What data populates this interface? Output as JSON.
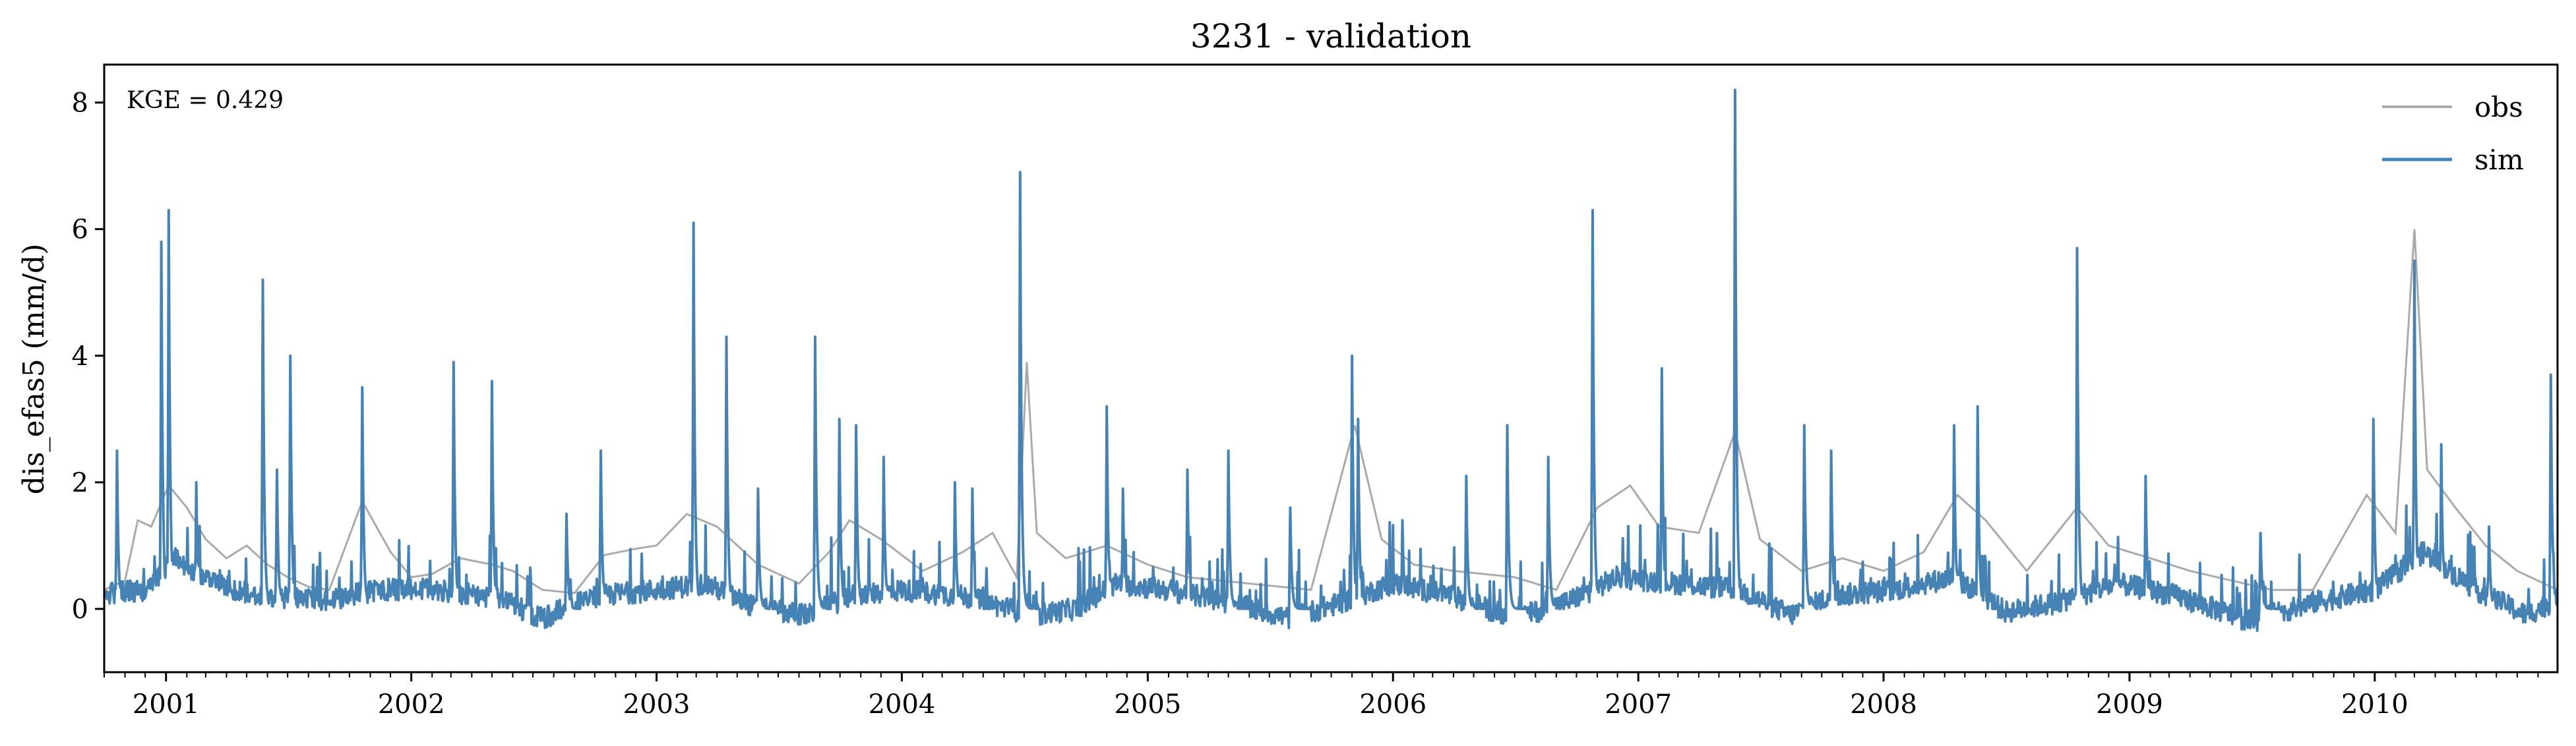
{
  "chart_data": {
    "type": "line",
    "title": "3231 - validation",
    "xlabel": "",
    "ylabel": "dis_efas5 (mm/d)",
    "annotation": "KGE = 0.429",
    "xlim": [
      "2000-10-01",
      "2010-09-30"
    ],
    "ylim": [
      -1,
      8.6
    ],
    "yticks": [
      0,
      2,
      4,
      6,
      8
    ],
    "xticks": [
      "2001",
      "2002",
      "2003",
      "2004",
      "2005",
      "2006",
      "2007",
      "2008",
      "2009",
      "2010"
    ],
    "grid": false,
    "legend_position": "top-right",
    "series": [
      {
        "name": "obs",
        "color": "#aaaaaa",
        "points": [
          [
            "2000-10-01",
            0.3
          ],
          [
            "2000-11-01",
            0.45
          ],
          [
            "2000-11-20",
            1.4
          ],
          [
            "2000-12-10",
            1.3
          ],
          [
            "2001-01-05",
            1.95
          ],
          [
            "2001-02-01",
            1.6
          ],
          [
            "2001-03-01",
            1.1
          ],
          [
            "2001-04-01",
            0.8
          ],
          [
            "2001-05-01",
            1.0
          ],
          [
            "2001-06-01",
            0.7
          ],
          [
            "2001-07-01",
            0.5
          ],
          [
            "2001-08-01",
            0.35
          ],
          [
            "2001-09-01",
            0.3
          ],
          [
            "2001-10-20",
            1.7
          ],
          [
            "2001-12-01",
            0.9
          ],
          [
            "2002-01-01",
            0.5
          ],
          [
            "2002-02-01",
            0.55
          ],
          [
            "2002-03-15",
            0.8
          ],
          [
            "2002-05-01",
            0.7
          ],
          [
            "2002-06-01",
            0.6
          ],
          [
            "2002-07-15",
            0.3
          ],
          [
            "2002-09-01",
            0.25
          ],
          [
            "2002-10-15",
            0.85
          ],
          [
            "2002-12-01",
            0.95
          ],
          [
            "2003-01-01",
            1.0
          ],
          [
            "2003-02-15",
            1.5
          ],
          [
            "2003-04-01",
            1.3
          ],
          [
            "2003-06-01",
            0.7
          ],
          [
            "2003-08-01",
            0.4
          ],
          [
            "2003-09-15",
            0.9
          ],
          [
            "2003-10-15",
            1.4
          ],
          [
            "2003-12-01",
            1.1
          ],
          [
            "2004-02-01",
            0.6
          ],
          [
            "2004-04-01",
            0.9
          ],
          [
            "2004-05-15",
            1.2
          ],
          [
            "2004-06-20",
            0.5
          ],
          [
            "2004-07-05",
            3.9
          ],
          [
            "2004-07-20",
            1.2
          ],
          [
            "2004-09-01",
            0.8
          ],
          [
            "2004-11-01",
            1.0
          ],
          [
            "2005-01-01",
            0.7
          ],
          [
            "2005-03-01",
            0.5
          ],
          [
            "2005-06-01",
            0.4
          ],
          [
            "2005-09-01",
            0.3
          ],
          [
            "2005-11-05",
            2.9
          ],
          [
            "2005-12-15",
            1.1
          ],
          [
            "2006-02-01",
            0.7
          ],
          [
            "2006-04-01",
            0.6
          ],
          [
            "2006-07-01",
            0.5
          ],
          [
            "2006-09-01",
            0.3
          ],
          [
            "2006-11-01",
            1.6
          ],
          [
            "2006-12-20",
            1.95
          ],
          [
            "2007-02-01",
            1.3
          ],
          [
            "2007-04-01",
            1.2
          ],
          [
            "2007-05-25",
            2.8
          ],
          [
            "2007-07-01",
            1.1
          ],
          [
            "2007-09-01",
            0.6
          ],
          [
            "2007-11-01",
            0.8
          ],
          [
            "2008-01-01",
            0.6
          ],
          [
            "2008-03-01",
            0.9
          ],
          [
            "2008-04-20",
            1.8
          ],
          [
            "2008-06-01",
            1.4
          ],
          [
            "2008-08-01",
            0.6
          ],
          [
            "2008-10-15",
            1.6
          ],
          [
            "2008-12-01",
            1.0
          ],
          [
            "2009-02-01",
            0.8
          ],
          [
            "2009-04-01",
            0.6
          ],
          [
            "2009-06-01",
            0.45
          ],
          [
            "2009-08-01",
            0.3
          ],
          [
            "2009-10-01",
            0.3
          ],
          [
            "2009-12-20",
            1.8
          ],
          [
            "2010-02-01",
            1.2
          ],
          [
            "2010-03-01",
            6.0
          ],
          [
            "2010-03-20",
            2.2
          ],
          [
            "2010-05-01",
            1.6
          ],
          [
            "2010-06-15",
            1.0
          ],
          [
            "2010-08-01",
            0.6
          ],
          [
            "2010-09-30",
            0.3
          ]
        ]
      },
      {
        "name": "sim",
        "color": "#4682b4",
        "base_points": [
          [
            "2000-10-01",
            0.25
          ],
          [
            "2000-12-01",
            0.3
          ],
          [
            "2001-01-15",
            0.8
          ],
          [
            "2001-03-15",
            0.4
          ],
          [
            "2001-06-01",
            0.15
          ],
          [
            "2001-09-01",
            0.15
          ],
          [
            "2001-11-15",
            0.3
          ],
          [
            "2002-02-01",
            0.3
          ],
          [
            "2002-05-01",
            0.2
          ],
          [
            "2002-07-15",
            -0.15
          ],
          [
            "2002-10-01",
            0.2
          ],
          [
            "2003-01-01",
            0.3
          ],
          [
            "2003-03-15",
            0.4
          ],
          [
            "2003-06-01",
            0.0
          ],
          [
            "2003-08-15",
            -0.1
          ],
          [
            "2003-10-15",
            0.2
          ],
          [
            "2004-01-01",
            0.3
          ],
          [
            "2004-04-01",
            0.2
          ],
          [
            "2004-07-15",
            -0.1
          ],
          [
            "2004-09-15",
            0.0
          ],
          [
            "2004-11-15",
            0.4
          ],
          [
            "2005-02-01",
            0.3
          ],
          [
            "2005-05-01",
            0.1
          ],
          [
            "2005-08-01",
            -0.15
          ],
          [
            "2005-10-15",
            0.1
          ],
          [
            "2006-01-01",
            0.4
          ],
          [
            "2006-04-01",
            0.2
          ],
          [
            "2006-07-01",
            -0.15
          ],
          [
            "2006-09-15",
            0.1
          ],
          [
            "2006-12-01",
            0.5
          ],
          [
            "2007-03-01",
            0.4
          ],
          [
            "2007-06-01",
            0.3
          ],
          [
            "2007-08-15",
            -0.1
          ],
          [
            "2007-10-15",
            0.2
          ],
          [
            "2008-01-15",
            0.3
          ],
          [
            "2008-04-15",
            0.5
          ],
          [
            "2008-07-01",
            -0.05
          ],
          [
            "2008-09-15",
            0.1
          ],
          [
            "2008-12-15",
            0.4
          ],
          [
            "2009-03-15",
            0.2
          ],
          [
            "2009-07-01",
            -0.2
          ],
          [
            "2009-10-01",
            0.1
          ],
          [
            "2010-01-01",
            0.3
          ],
          [
            "2010-03-15",
            0.9
          ],
          [
            "2010-06-01",
            0.3
          ],
          [
            "2010-08-15",
            -0.1
          ],
          [
            "2010-09-30",
            0.15
          ]
        ],
        "peaks": [
          [
            "2000-10-20",
            2.5
          ],
          [
            "2000-12-25",
            5.8
          ],
          [
            "2001-01-05",
            6.3
          ],
          [
            "2001-02-15",
            2.0
          ],
          [
            "2001-05-25",
            5.2
          ],
          [
            "2001-06-15",
            2.2
          ],
          [
            "2001-07-05",
            4.0
          ],
          [
            "2001-10-20",
            3.5
          ],
          [
            "2002-03-05",
            3.9
          ],
          [
            "2002-05-01",
            3.6
          ],
          [
            "2002-08-20",
            1.5
          ],
          [
            "2002-10-10",
            2.5
          ],
          [
            "2003-02-25",
            6.1
          ],
          [
            "2003-04-15",
            4.3
          ],
          [
            "2003-06-01",
            1.9
          ],
          [
            "2003-08-25",
            4.3
          ],
          [
            "2003-09-30",
            3.0
          ],
          [
            "2003-10-25",
            2.9
          ],
          [
            "2003-12-05",
            2.4
          ],
          [
            "2004-03-20",
            2.0
          ],
          [
            "2004-04-15",
            1.9
          ],
          [
            "2004-06-25",
            6.9
          ],
          [
            "2004-11-01",
            3.2
          ],
          [
            "2004-11-25",
            1.9
          ],
          [
            "2005-03-01",
            2.2
          ],
          [
            "2005-05-01",
            2.5
          ],
          [
            "2005-08-01",
            1.6
          ],
          [
            "2005-11-01",
            4.0
          ],
          [
            "2005-11-10",
            3.0
          ],
          [
            "2006-01-15",
            1.4
          ],
          [
            "2006-04-20",
            2.1
          ],
          [
            "2006-06-20",
            2.9
          ],
          [
            "2006-08-20",
            2.4
          ],
          [
            "2006-10-25",
            6.3
          ],
          [
            "2007-02-05",
            3.8
          ],
          [
            "2007-05-25",
            8.2
          ],
          [
            "2007-09-05",
            2.9
          ],
          [
            "2007-10-15",
            2.5
          ],
          [
            "2008-04-15",
            2.9
          ],
          [
            "2008-05-20",
            3.2
          ],
          [
            "2008-10-15",
            5.7
          ],
          [
            "2009-01-25",
            2.1
          ],
          [
            "2009-07-15",
            1.2
          ],
          [
            "2009-12-30",
            3.0
          ],
          [
            "2010-03-01",
            5.5
          ],
          [
            "2010-04-10",
            2.6
          ],
          [
            "2010-06-20",
            1.3
          ],
          [
            "2010-09-20",
            3.7
          ]
        ]
      }
    ]
  }
}
